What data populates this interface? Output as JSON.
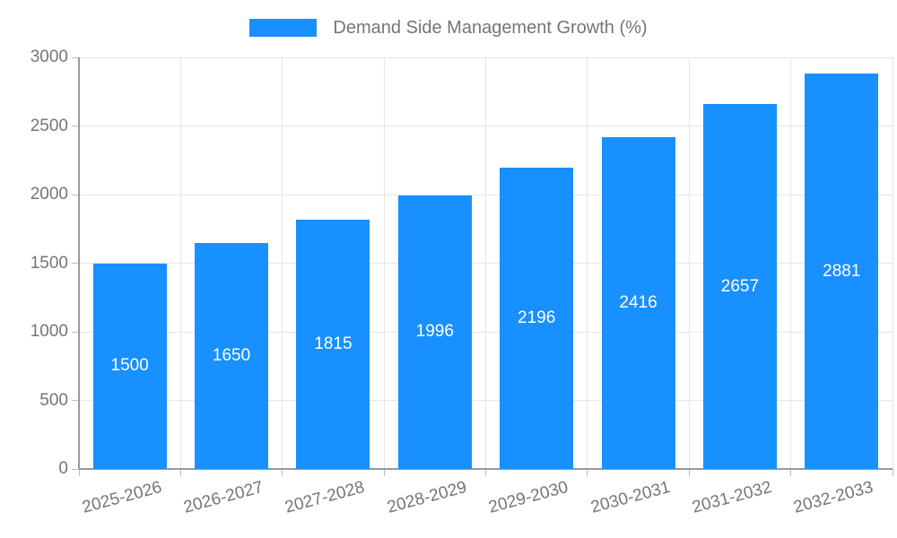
{
  "chart_data": {
    "type": "bar",
    "title": "Demand Side Management Growth (%)",
    "legend": {
      "label": "Demand Side Management Growth (%)",
      "position": "top"
    },
    "categories": [
      "2025-2026",
      "2026-2027",
      "2027-2028",
      "2028-2029",
      "2029-2030",
      "2030-2031",
      "2031-2032",
      "2032-2033"
    ],
    "values": [
      1500,
      1650,
      1815,
      1996,
      2196,
      2416,
      2657,
      2881
    ],
    "value_labels": [
      "1500",
      "1650",
      "1815",
      "1996",
      "2196",
      "2416",
      "2657",
      "2881"
    ],
    "xlabel": "",
    "ylabel": "",
    "ylim": [
      0,
      3000
    ],
    "yticks": [
      0,
      500,
      1000,
      1500,
      2000,
      2500,
      3000
    ],
    "grid": true,
    "value_label_position": "inside-center"
  },
  "colors": {
    "bar": "#1890ff",
    "bar_label_text": "#ffffff",
    "tick_text": "#757575",
    "legend_text": "#757575",
    "gridline": "#e5e5e5",
    "axis_line": "#999999",
    "tick_mark": "#bbbbbb",
    "background": "#ffffff"
  }
}
